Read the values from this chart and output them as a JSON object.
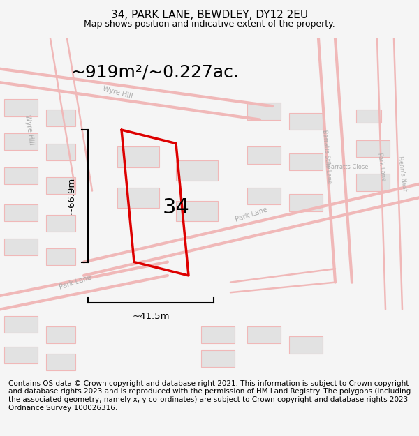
{
  "title": "34, PARK LANE, BEWDLEY, DY12 2EU",
  "subtitle": "Map shows position and indicative extent of the property.",
  "area_text": "~919m²/~0.227ac.",
  "number_label": "34",
  "width_label": "~41.5m",
  "height_label": "~66.9m",
  "footer_text": "Contains OS data © Crown copyright and database right 2021. This information is subject to Crown copyright and database rights 2023 and is reproduced with the permission of HM Land Registry. The polygons (including the associated geometry, namely x, y co-ordinates) are subject to Crown copyright and database rights 2023 Ordnance Survey 100026316.",
  "bg_color": "#f5f5f5",
  "map_bg": "#ffffff",
  "road_color": "#f0b8b8",
  "building_color": "#e2e2e2",
  "plot_color": "#dd0000",
  "text_color": "#000000",
  "footer_color": "#000000",
  "title_fontsize": 11,
  "subtitle_fontsize": 9,
  "area_fontsize": 18,
  "label_fontsize": 9.5,
  "number_fontsize": 22,
  "footer_fontsize": 7.5
}
